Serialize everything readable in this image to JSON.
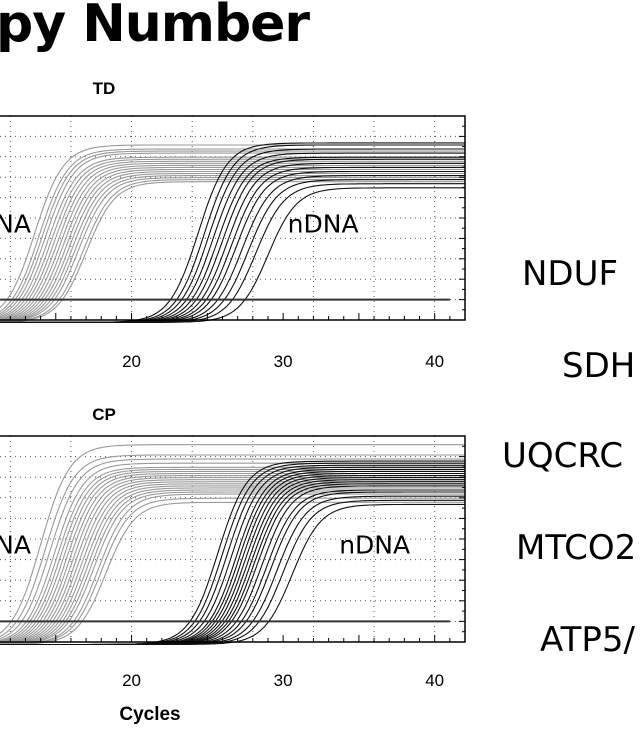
{
  "page": {
    "title": "py Number",
    "genes": [
      "NDUF",
      "SDH",
      "UQCRC",
      "MTCO2",
      "ATP5/"
    ]
  },
  "chart_data": [
    {
      "type": "line",
      "title": "TD",
      "xlabel": "",
      "ylabel": "",
      "xlim": [
        10,
        42
      ],
      "xticks": [
        20,
        30,
        40
      ],
      "ylim": [
        0,
        10
      ],
      "grid": "dotted",
      "threshold": 1.0,
      "series": [
        {
          "name": "",
          "color": "#999999",
          "midpoints": [
            13.6,
            13.9,
            14.1,
            14.3,
            14.5,
            14.7,
            14.9,
            15.1,
            15.3,
            15.5,
            15.7,
            15.9,
            16.1,
            16.3,
            16.5,
            16.8,
            17.0
          ],
          "plateaus": [
            8.7,
            8.5,
            8.4,
            8.3,
            8.1,
            8.0,
            7.9,
            7.8,
            7.7,
            7.6,
            7.5,
            7.4,
            7.3,
            7.2,
            7.1,
            7.0,
            6.9
          ]
        },
        {
          "name": "",
          "color": "#111111",
          "midpoints": [
            24.4,
            24.8,
            25.1,
            25.4,
            25.7,
            26.0,
            26.3,
            26.6,
            26.9,
            27.3,
            27.7,
            28.2,
            29.0
          ],
          "plateaus": [
            8.8,
            8.7,
            8.5,
            8.3,
            8.1,
            8.0,
            7.8,
            7.6,
            7.4,
            7.2,
            7.0,
            6.8,
            6.6
          ]
        }
      ],
      "annotations": [
        {
          "text": "NA",
          "x": 11.0,
          "y": 4.3
        },
        {
          "text": "nDNA",
          "x": 30.3,
          "y": 4.3
        }
      ]
    },
    {
      "type": "line",
      "title": "CP",
      "xlabel": "Cycles",
      "ylabel": "",
      "xlim": [
        10,
        42
      ],
      "xticks": [
        20,
        30,
        40
      ],
      "ylim": [
        0,
        10
      ],
      "grid": "dotted",
      "threshold": 1.0,
      "series": [
        {
          "name": "",
          "color": "#999999",
          "midpoints": [
            14.0,
            14.3,
            14.6,
            14.9,
            15.1,
            15.3,
            15.5,
            15.7,
            15.9,
            16.1,
            16.3,
            16.5,
            16.7,
            16.9,
            17.1,
            17.3,
            17.5,
            17.8,
            18.0,
            18.3
          ],
          "plateaus": [
            9.7,
            9.2,
            9.0,
            8.8,
            8.6,
            8.5,
            8.4,
            8.3,
            8.2,
            8.1,
            8.0,
            7.9,
            7.8,
            7.7,
            7.6,
            7.5,
            7.4,
            7.3,
            7.1,
            6.9
          ]
        },
        {
          "name": "",
          "color": "#111111",
          "midpoints": [
            25.7,
            26.0,
            26.3,
            26.6,
            26.9,
            27.1,
            27.3,
            27.5,
            27.7,
            27.9,
            28.1,
            28.3,
            28.6,
            28.9,
            29.2,
            29.6,
            30.0,
            30.6
          ],
          "plateaus": [
            8.9,
            8.8,
            8.7,
            8.6,
            8.5,
            8.4,
            8.3,
            8.2,
            8.1,
            8.0,
            7.9,
            7.8,
            7.7,
            7.5,
            7.4,
            7.2,
            7.0,
            6.8
          ]
        }
      ],
      "annotations": [
        {
          "text": "NA",
          "x": 11.0,
          "y": 4.3
        },
        {
          "text": "nDNA",
          "x": 33.7,
          "y": 4.3
        }
      ]
    }
  ]
}
